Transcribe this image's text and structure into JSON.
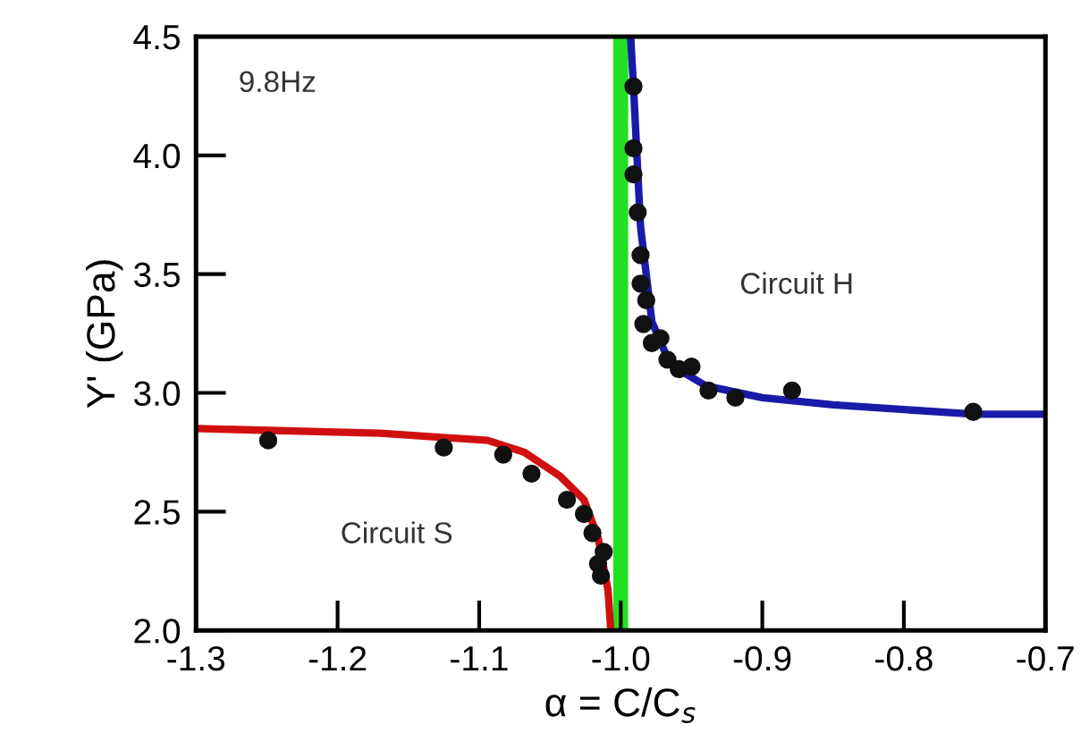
{
  "chart_data": {
    "type": "line",
    "xlabel": "α = C/C$_{s}$",
    "ylabel": "Y' (GPa)",
    "xlim": [
      -1.3,
      -0.7
    ],
    "xticks": [
      {
        "value": -1.3,
        "label": "-1.3"
      },
      {
        "value": -1.2,
        "label": "-1.2"
      },
      {
        "value": -1.1,
        "label": "-1.1"
      },
      {
        "value": -1.0,
        "label": "-1.0"
      },
      {
        "value": -0.9,
        "label": "-0.9"
      },
      {
        "value": -0.8,
        "label": "-0.8"
      },
      {
        "value": -0.7,
        "label": "-0.7"
      }
    ],
    "ylim": [
      2.0,
      4.5
    ],
    "yticks": [
      {
        "value": 2.0,
        "label": "2.0"
      },
      {
        "value": 2.5,
        "label": "2.5"
      },
      {
        "value": 3.0,
        "label": "3.0"
      },
      {
        "value": 3.5,
        "label": "3.5"
      },
      {
        "value": 4.0,
        "label": "4.0"
      },
      {
        "value": 4.5,
        "label": "4.5"
      }
    ],
    "grid": false,
    "marker": "none",
    "series": [
      {
        "color": "#d01010",
        "x": [
          -1.3,
          -1.17,
          -1.094,
          -1.068,
          -1.043,
          -1.026,
          -1.016,
          -1.009,
          -1.007
        ],
        "values": [
          2.85,
          2.83,
          2.8,
          2.75,
          2.65,
          2.55,
          2.39,
          2.17,
          2.0
        ]
      },
      {
        "color": "#1a1aa8",
        "x": [
          -0.993,
          -0.991,
          -0.986,
          -0.978,
          -0.965,
          -0.94,
          -0.9,
          -0.85,
          -0.8,
          -0.75,
          -0.7
        ],
        "values": [
          4.5,
          4.29,
          3.7,
          3.3,
          3.12,
          3.03,
          2.98,
          2.95,
          2.93,
          2.91,
          2.91
        ]
      },
      {
        "type": "scatter",
        "color": "#111111",
        "marker": "circle",
        "x": [
          -1.249,
          -1.125,
          -1.083,
          -1.063,
          -1.038,
          -1.026,
          -1.02,
          -1.016,
          -1.014,
          -1.012,
          -0.991,
          -0.991,
          -0.991,
          -0.988,
          -0.986,
          -0.986,
          -0.982,
          -0.984,
          -0.978,
          -0.972,
          -0.967,
          -0.959,
          -0.95,
          -0.938,
          -0.919,
          -0.879,
          -0.751
        ],
        "values": [
          2.8,
          2.77,
          2.74,
          2.66,
          2.55,
          2.49,
          2.41,
          2.28,
          2.23,
          2.33,
          4.29,
          4.03,
          3.92,
          3.76,
          3.58,
          3.46,
          3.39,
          3.29,
          3.21,
          3.23,
          3.14,
          3.1,
          3.11,
          3.01,
          2.98,
          3.01,
          2.92
        ]
      }
    ],
    "ref_lines": [
      {
        "axis": "x",
        "value": -1.0,
        "color": "#22e022"
      }
    ],
    "annotations": [
      "9.8Hz",
      "Circuit S",
      "Circuit H"
    ]
  }
}
